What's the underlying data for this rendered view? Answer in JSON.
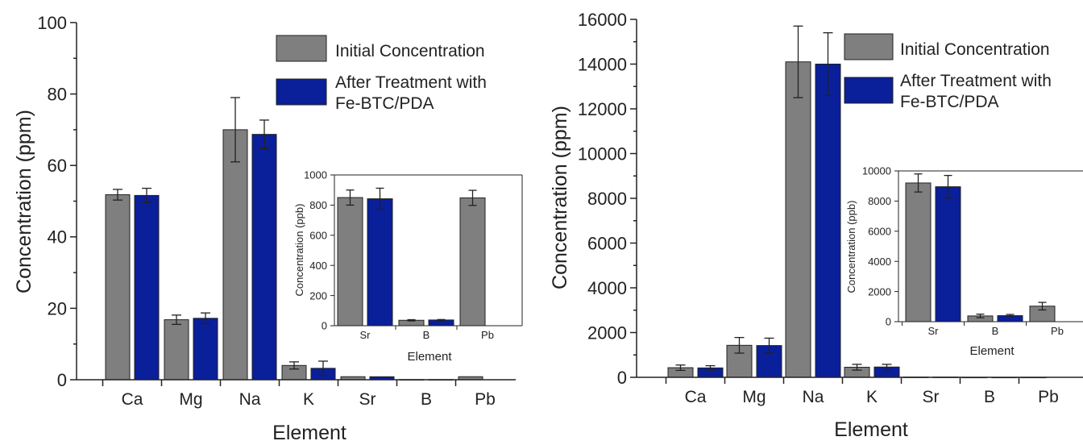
{
  "colors": {
    "initial": "#7f7f7f",
    "treated": "#0a1f9a",
    "axis": "#222222"
  },
  "chart_data": [
    {
      "type": "bar",
      "categories": [
        "Ca",
        "Mg",
        "Na",
        "K",
        "Sr",
        "B",
        "Pb"
      ],
      "xlabel": "Element",
      "ylabel": "Concentration (ppm)",
      "ylim": [
        0,
        100
      ],
      "yticks": [
        0,
        20,
        40,
        60,
        80,
        100
      ],
      "legend": [
        "Initial Concentration",
        "After Treatment with",
        "Fe-BTC/PDA"
      ],
      "series": [
        {
          "name": "Initial Concentration",
          "values": [
            51.8,
            16.8,
            70.0,
            4.0,
            0.85,
            0.04,
            0.85
          ],
          "errors": [
            1.5,
            1.3,
            9.0,
            1.0,
            0.0,
            0.0,
            0.0
          ]
        },
        {
          "name": "After Treatment with Fe-BTC/PDA",
          "values": [
            51.6,
            17.2,
            68.7,
            3.2,
            0.84,
            0.04,
            0.0
          ],
          "errors": [
            2.0,
            1.5,
            4.0,
            2.0,
            0.0,
            0.0,
            0.0
          ]
        }
      ],
      "inset": {
        "categories": [
          "Sr",
          "B",
          "Pb"
        ],
        "xlabel": "Element",
        "ylabel": "Concentration (ppb)",
        "ylim": [
          0,
          1000
        ],
        "yticks": [
          0,
          200,
          400,
          600,
          800,
          1000
        ],
        "series": [
          {
            "name": "Initial Concentration",
            "values": [
              850,
              36,
              848
            ],
            "errors": [
              50,
              4,
              50
            ]
          },
          {
            "name": "After Treatment with Fe-BTC/PDA",
            "values": [
              842,
              38,
              0
            ],
            "errors": [
              70,
              3,
              0
            ]
          }
        ]
      }
    },
    {
      "type": "bar",
      "categories": [
        "Ca",
        "Mg",
        "Na",
        "K",
        "Sr",
        "B",
        "Pb"
      ],
      "xlabel": "Element",
      "ylabel": "Concentration (ppm)",
      "ylim": [
        0,
        16000
      ],
      "yticks": [
        0,
        2000,
        4000,
        6000,
        8000,
        10000,
        12000,
        14000,
        16000
      ],
      "legend": [
        "Initial Concentration",
        "After Treatment with",
        "Fe-BTC/PDA"
      ],
      "series": [
        {
          "name": "Initial Concentration",
          "values": [
            430,
            1430,
            14100,
            450,
            9.2,
            0.4,
            1.0
          ],
          "errors": [
            120,
            350,
            1600,
            130,
            0,
            0,
            0
          ]
        },
        {
          "name": "After Treatment with Fe-BTC/PDA",
          "values": [
            420,
            1420,
            14000,
            460,
            9.0,
            0.4,
            0.0
          ],
          "errors": [
            100,
            330,
            1400,
            120,
            0,
            0,
            0
          ]
        }
      ],
      "inset": {
        "categories": [
          "Sr",
          "B",
          "Pb"
        ],
        "xlabel": "Element",
        "ylabel": "Concentration (ppb)",
        "ylim": [
          0,
          10000
        ],
        "yticks": [
          0,
          2000,
          4000,
          6000,
          8000,
          10000
        ],
        "series": [
          {
            "name": "Initial Concentration",
            "values": [
              9200,
              380,
              1030
            ],
            "errors": [
              600,
              120,
              250
            ]
          },
          {
            "name": "After Treatment with Fe-BTC/PDA",
            "values": [
              8950,
              400,
              0
            ],
            "errors": [
              750,
              80,
              0
            ]
          }
        ]
      }
    }
  ]
}
